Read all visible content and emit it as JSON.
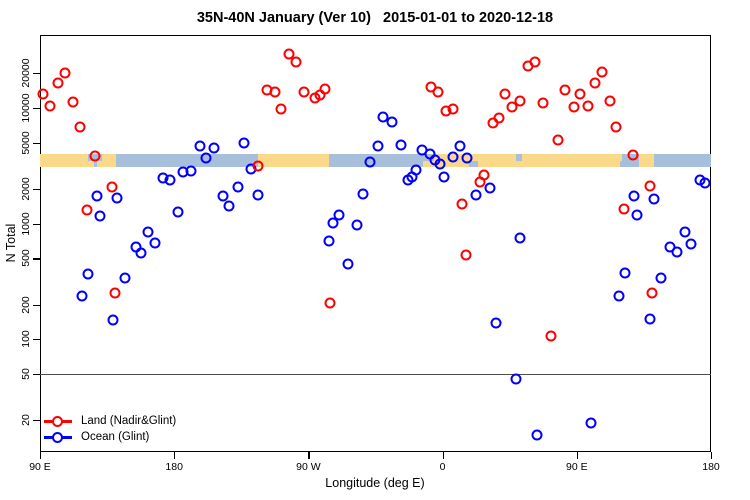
{
  "title": "35N-40N January (Ver 10)   2015-01-01 to 2020-12-18",
  "colors": {
    "land_series": "#ff0000",
    "ocean_series": "#0000ff",
    "band_land": "#fbd98a",
    "band_ocean": "#a8bfdc",
    "reference_line": "#4d4d4d",
    "axis": "#000000"
  },
  "legend": {
    "items": [
      {
        "label": "Land (Nadir&Glint)",
        "color": "#ff0000"
      },
      {
        "label": "Ocean (Glint)",
        "color": "#0000ff"
      }
    ]
  },
  "chart_data": {
    "type": "scatter",
    "title": "35N-40N January (Ver 10)   2015-01-01 to 2020-12-18",
    "xlabel": "Longitude (deg E)",
    "ylabel": "N Total",
    "x_axis": {
      "range_axis_deg": [
        90,
        540
      ],
      "ticks": [
        {
          "axis_deg": 90,
          "label": "90 E"
        },
        {
          "axis_deg": 180,
          "label": "180"
        },
        {
          "axis_deg": 270,
          "label": "90 W"
        },
        {
          "axis_deg": 360,
          "label": "0"
        },
        {
          "axis_deg": 450,
          "label": "90 E"
        },
        {
          "axis_deg": 540,
          "label": "180"
        }
      ]
    },
    "y_axis": {
      "scale": "log",
      "range": [
        10,
        43000
      ],
      "ticks": [
        20000,
        10000,
        5000,
        2000,
        1000,
        500,
        200,
        100,
        50,
        20
      ]
    },
    "reference_line": {
      "n": 50
    },
    "land_ocean_band": {
      "n_range": [
        3090,
        4010
      ],
      "segments": [
        {
          "from_deg": 90,
          "to_deg": 122,
          "surface": "land"
        },
        {
          "from_deg": 122,
          "to_deg": 131.5,
          "surface": "ocean"
        },
        {
          "from_deg": 131.5,
          "to_deg": 141,
          "surface": "land"
        },
        {
          "from_deg": 141,
          "to_deg": 236,
          "surface": "ocean"
        },
        {
          "from_deg": 236,
          "to_deg": 283.5,
          "surface": "land"
        },
        {
          "from_deg": 283.5,
          "to_deg": 354,
          "surface": "ocean"
        },
        {
          "from_deg": 354,
          "to_deg": 479,
          "surface": "land"
        },
        {
          "from_deg": 479,
          "to_deg": 492,
          "surface": "ocean"
        },
        {
          "from_deg": 492,
          "to_deg": 501.5,
          "surface": "land"
        },
        {
          "from_deg": 501.5,
          "to_deg": 540,
          "surface": "ocean"
        }
      ],
      "coast_patches": [
        {
          "from_deg": 119,
          "to_deg": 126,
          "half": "bottom",
          "surface": "land"
        },
        {
          "from_deg": 128.5,
          "to_deg": 131.5,
          "half": "bottom",
          "surface": "land"
        },
        {
          "from_deg": 347,
          "to_deg": 354,
          "half": "bottom",
          "surface": "land"
        },
        {
          "from_deg": 378,
          "to_deg": 384,
          "half": "bottom",
          "surface": "ocean"
        },
        {
          "from_deg": 409,
          "to_deg": 413,
          "half": "top",
          "surface": "ocean"
        },
        {
          "from_deg": 475,
          "to_deg": 480,
          "half": "top",
          "surface": "land"
        },
        {
          "from_deg": 488,
          "to_deg": 492,
          "half": "bottom",
          "surface": "ocean"
        }
      ]
    },
    "series": [
      {
        "name": "Land (Nadir&Glint)",
        "color": "#ff0000",
        "points": [
          {
            "lon_axis_deg": 107,
            "n": 20200
          },
          {
            "lon_axis_deg": 102,
            "n": 16400
          },
          {
            "lon_axis_deg": 92,
            "n": 13300
          },
          {
            "lon_axis_deg": 97,
            "n": 10400
          },
          {
            "lon_axis_deg": 112,
            "n": 11400
          },
          {
            "lon_axis_deg": 116.5,
            "n": 6900
          },
          {
            "lon_axis_deg": 127,
            "n": 3880
          },
          {
            "lon_axis_deg": 138.5,
            "n": 2090
          },
          {
            "lon_axis_deg": 121.5,
            "n": 1320
          },
          {
            "lon_axis_deg": 257,
            "n": 29400
          },
          {
            "lon_axis_deg": 261.5,
            "n": 25200
          },
          {
            "lon_axis_deg": 242,
            "n": 14200
          },
          {
            "lon_axis_deg": 247.5,
            "n": 13900
          },
          {
            "lon_axis_deg": 267,
            "n": 13900
          },
          {
            "lon_axis_deg": 274.5,
            "n": 12200
          },
          {
            "lon_axis_deg": 278,
            "n": 13000
          },
          {
            "lon_axis_deg": 281,
            "n": 14500
          },
          {
            "lon_axis_deg": 251.5,
            "n": 9800
          },
          {
            "lon_axis_deg": 236.5,
            "n": 3160
          },
          {
            "lon_axis_deg": 417.5,
            "n": 23100
          },
          {
            "lon_axis_deg": 422,
            "n": 25200
          },
          {
            "lon_axis_deg": 352.5,
            "n": 15100
          },
          {
            "lon_axis_deg": 357,
            "n": 13700
          },
          {
            "lon_axis_deg": 362.5,
            "n": 9500
          },
          {
            "lon_axis_deg": 367,
            "n": 9760
          },
          {
            "lon_axis_deg": 402,
            "n": 13200
          },
          {
            "lon_axis_deg": 412,
            "n": 11600
          },
          {
            "lon_axis_deg": 406.5,
            "n": 10200
          },
          {
            "lon_axis_deg": 427,
            "n": 11100
          },
          {
            "lon_axis_deg": 394,
            "n": 7480
          },
          {
            "lon_axis_deg": 398,
            "n": 8160
          },
          {
            "lon_axis_deg": 387.5,
            "n": 2640
          },
          {
            "lon_axis_deg": 385,
            "n": 2310
          },
          {
            "lon_axis_deg": 373,
            "n": 1480
          },
          {
            "lon_axis_deg": 467,
            "n": 20600
          },
          {
            "lon_axis_deg": 462,
            "n": 16400
          },
          {
            "lon_axis_deg": 442,
            "n": 14300
          },
          {
            "lon_axis_deg": 452,
            "n": 13200
          },
          {
            "lon_axis_deg": 448,
            "n": 10200
          },
          {
            "lon_axis_deg": 457.5,
            "n": 10500
          },
          {
            "lon_axis_deg": 472,
            "n": 11600
          },
          {
            "lon_axis_deg": 476.5,
            "n": 6900
          },
          {
            "lon_axis_deg": 437.5,
            "n": 5300
          },
          {
            "lon_axis_deg": 487.5,
            "n": 3930
          },
          {
            "lon_axis_deg": 499,
            "n": 2120
          },
          {
            "lon_axis_deg": 481.5,
            "n": 1340
          },
          {
            "lon_axis_deg": 140.5,
            "n": 250
          },
          {
            "lon_axis_deg": 284.5,
            "n": 205
          },
          {
            "lon_axis_deg": 375.5,
            "n": 536
          },
          {
            "lon_axis_deg": 432.5,
            "n": 107
          },
          {
            "lon_axis_deg": 500.5,
            "n": 250
          }
        ]
      },
      {
        "name": "Ocean (Glint)",
        "color": "#0000ff",
        "points": [
          {
            "lon_axis_deg": 197.5,
            "n": 4670
          },
          {
            "lon_axis_deg": 201,
            "n": 3680
          },
          {
            "lon_axis_deg": 172.5,
            "n": 2470
          },
          {
            "lon_axis_deg": 177,
            "n": 2390
          },
          {
            "lon_axis_deg": 186,
            "n": 2780
          },
          {
            "lon_axis_deg": 191.5,
            "n": 2860
          },
          {
            "lon_axis_deg": 128,
            "n": 1750
          },
          {
            "lon_axis_deg": 141.5,
            "n": 1670
          },
          {
            "lon_axis_deg": 130,
            "n": 1170
          },
          {
            "lon_axis_deg": 182.5,
            "n": 1260
          },
          {
            "lon_axis_deg": 162.5,
            "n": 853
          },
          {
            "lon_axis_deg": 167,
            "n": 677
          },
          {
            "lon_axis_deg": 154.5,
            "n": 623
          },
          {
            "lon_axis_deg": 158,
            "n": 553
          },
          {
            "lon_axis_deg": 207,
            "n": 4550
          },
          {
            "lon_axis_deg": 227,
            "n": 4960
          },
          {
            "lon_axis_deg": 231.5,
            "n": 2960
          },
          {
            "lon_axis_deg": 222.5,
            "n": 2070
          },
          {
            "lon_axis_deg": 213,
            "n": 1750
          },
          {
            "lon_axis_deg": 216.5,
            "n": 1430
          },
          {
            "lon_axis_deg": 236,
            "n": 1770
          },
          {
            "lon_axis_deg": 320,
            "n": 8380
          },
          {
            "lon_axis_deg": 326,
            "n": 7630
          },
          {
            "lon_axis_deg": 317,
            "n": 4730
          },
          {
            "lon_axis_deg": 311.5,
            "n": 3400
          },
          {
            "lon_axis_deg": 306.5,
            "n": 1810
          },
          {
            "lon_axis_deg": 290.5,
            "n": 1190
          },
          {
            "lon_axis_deg": 286.5,
            "n": 1010
          },
          {
            "lon_axis_deg": 302.5,
            "n": 975
          },
          {
            "lon_axis_deg": 283.5,
            "n": 709
          },
          {
            "lon_axis_deg": 332,
            "n": 4790
          },
          {
            "lon_axis_deg": 346.5,
            "n": 4340
          },
          {
            "lon_axis_deg": 351.5,
            "n": 3980
          },
          {
            "lon_axis_deg": 371.5,
            "n": 4730
          },
          {
            "lon_axis_deg": 355,
            "n": 3560
          },
          {
            "lon_axis_deg": 358,
            "n": 3270
          },
          {
            "lon_axis_deg": 367,
            "n": 3800
          },
          {
            "lon_axis_deg": 376.5,
            "n": 3680
          },
          {
            "lon_axis_deg": 361,
            "n": 2550
          },
          {
            "lon_axis_deg": 342,
            "n": 2920
          },
          {
            "lon_axis_deg": 339.5,
            "n": 2550
          },
          {
            "lon_axis_deg": 337,
            "n": 2390
          },
          {
            "lon_axis_deg": 392,
            "n": 2030
          },
          {
            "lon_axis_deg": 382.5,
            "n": 1770
          },
          {
            "lon_axis_deg": 412,
            "n": 748
          },
          {
            "lon_axis_deg": 532.5,
            "n": 2390
          },
          {
            "lon_axis_deg": 536,
            "n": 2260
          },
          {
            "lon_axis_deg": 488.5,
            "n": 1750
          },
          {
            "lon_axis_deg": 502,
            "n": 1640
          },
          {
            "lon_axis_deg": 490.5,
            "n": 1190
          },
          {
            "lon_axis_deg": 522.5,
            "n": 853
          },
          {
            "lon_axis_deg": 122,
            "n": 365
          },
          {
            "lon_axis_deg": 147,
            "n": 341
          },
          {
            "lon_axis_deg": 118.5,
            "n": 239
          },
          {
            "lon_axis_deg": 139,
            "n": 147
          },
          {
            "lon_axis_deg": 296.5,
            "n": 448
          },
          {
            "lon_axis_deg": 396,
            "n": 138
          },
          {
            "lon_axis_deg": 409.5,
            "n": 45
          },
          {
            "lon_axis_deg": 423.5,
            "n": 15
          },
          {
            "lon_axis_deg": 512.5,
            "n": 632
          },
          {
            "lon_axis_deg": 517.5,
            "n": 573
          },
          {
            "lon_axis_deg": 526.5,
            "n": 661
          },
          {
            "lon_axis_deg": 482.5,
            "n": 373
          },
          {
            "lon_axis_deg": 506.5,
            "n": 337
          },
          {
            "lon_axis_deg": 478.5,
            "n": 239
          },
          {
            "lon_axis_deg": 499,
            "n": 150
          },
          {
            "lon_axis_deg": 459.5,
            "n": 19
          }
        ]
      }
    ]
  }
}
